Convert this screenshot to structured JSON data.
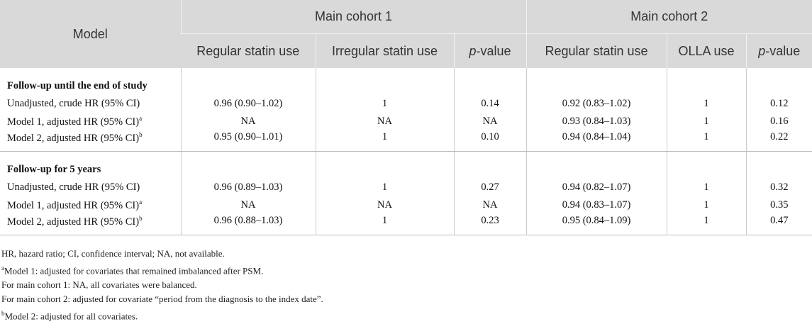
{
  "header": {
    "model": "Model",
    "groups": [
      "Main cohort 1",
      "Main cohort 2"
    ],
    "columns": [
      "Regular statin use",
      "Irregular statin use",
      {
        "italic": "p",
        "text": "-value"
      },
      "Regular statin use",
      "OLLA use",
      {
        "italic": "p",
        "text": "-value"
      }
    ]
  },
  "sections": [
    {
      "title": "Follow-up until the end of study",
      "rows": [
        {
          "label": "Unadjusted, crude HR (95% CI)",
          "cells": [
            "0.96 (0.90–1.02)",
            "1",
            "0.14",
            "0.92 (0.83–1.02)",
            "1",
            "0.12"
          ]
        },
        {
          "label": "Model 1, adjusted HR (95% CI)",
          "sup": "a",
          "cells": [
            "NA",
            "NA",
            "NA",
            "0.93 (0.84–1.03)",
            "1",
            "0.16"
          ]
        },
        {
          "label": "Model 2, adjusted HR (95% CI)",
          "sup": "b",
          "cells": [
            "0.95 (0.90–1.01)",
            "1",
            "0.10",
            "0.94 (0.84–1.04)",
            "1",
            "0.22"
          ]
        }
      ]
    },
    {
      "title": "Follow-up for 5 years",
      "rows": [
        {
          "label": "Unadjusted, crude HR (95% CI)",
          "cells": [
            "0.96 (0.89–1.03)",
            "1",
            "0.27",
            "0.94 (0.82–1.07)",
            "1",
            "0.32"
          ]
        },
        {
          "label": "Model 1, adjusted HR (95% CI)",
          "sup": "a",
          "cells": [
            "NA",
            "NA",
            "NA",
            "0.94 (0.83–1.07)",
            "1",
            "0.35"
          ]
        },
        {
          "label": "Model 2, adjusted HR (95% CI)",
          "sup": "b",
          "cells": [
            "0.96 (0.88–1.03)",
            "1",
            "0.23",
            "0.95 (0.84–1.09)",
            "1",
            "0.47"
          ]
        }
      ]
    }
  ],
  "footnotes": [
    {
      "text": "HR, hazard ratio; CI, confidence interval; NA, not available."
    },
    {
      "sup": "a",
      "text": "Model 1: adjusted for covariates that remained imbalanced after PSM."
    },
    {
      "text": "For main cohort 1: NA, all covariates were balanced."
    },
    {
      "text": "For main cohort 2: adjusted for covariate “period from the diagnosis to the index date”."
    },
    {
      "sup": "b",
      "text": "Model 2: adjusted for all covariates."
    }
  ]
}
